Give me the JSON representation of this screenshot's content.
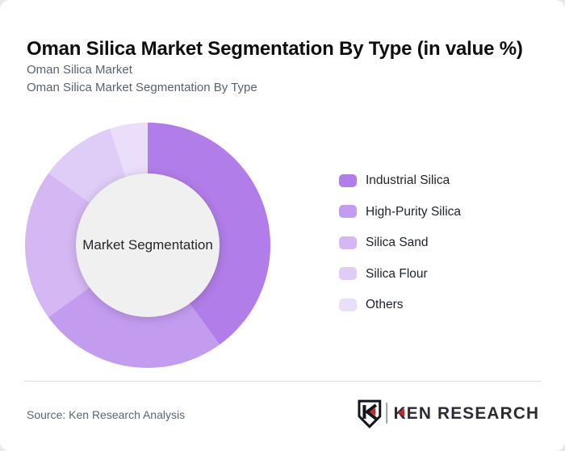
{
  "page": {
    "background_color": "#e9e9e9",
    "card_background": "#ffffff"
  },
  "header": {
    "title": "Oman Silica Market Segmentation By Type (in value %)",
    "subtitle_line1": "Oman Silica Market",
    "subtitle_line2": "Oman Silica Market Segmentation By Type"
  },
  "chart_data": {
    "type": "pie",
    "variant": "donut",
    "title": "Oman Silica Market Segmentation By Type (in value %)",
    "center_label": "Market Segmentation",
    "categories": [
      "Industrial Silica",
      "High-Purity Silica",
      "Silica Sand",
      "Silica Flour",
      "Others"
    ],
    "values": [
      40,
      25,
      20,
      10,
      5
    ],
    "unit": "percent of market value (estimated from segment angles)",
    "colors": [
      "#b17de9",
      "#c39cf0",
      "#d5b7f3",
      "#e0cdf7",
      "#ebdefa"
    ],
    "start_angle_deg": 0,
    "direction": "clockwise",
    "inner_radius_ratio": 0.59,
    "center_circle_color": "#f0f0f1",
    "legend_position": "right"
  },
  "footer": {
    "source_text": "Source: Ken Research Analysis",
    "logo": {
      "brand_text": "KEN RESEARCH",
      "monogram": "K",
      "accent_color": "#c9252c",
      "text_color": "#2b2b33"
    }
  }
}
